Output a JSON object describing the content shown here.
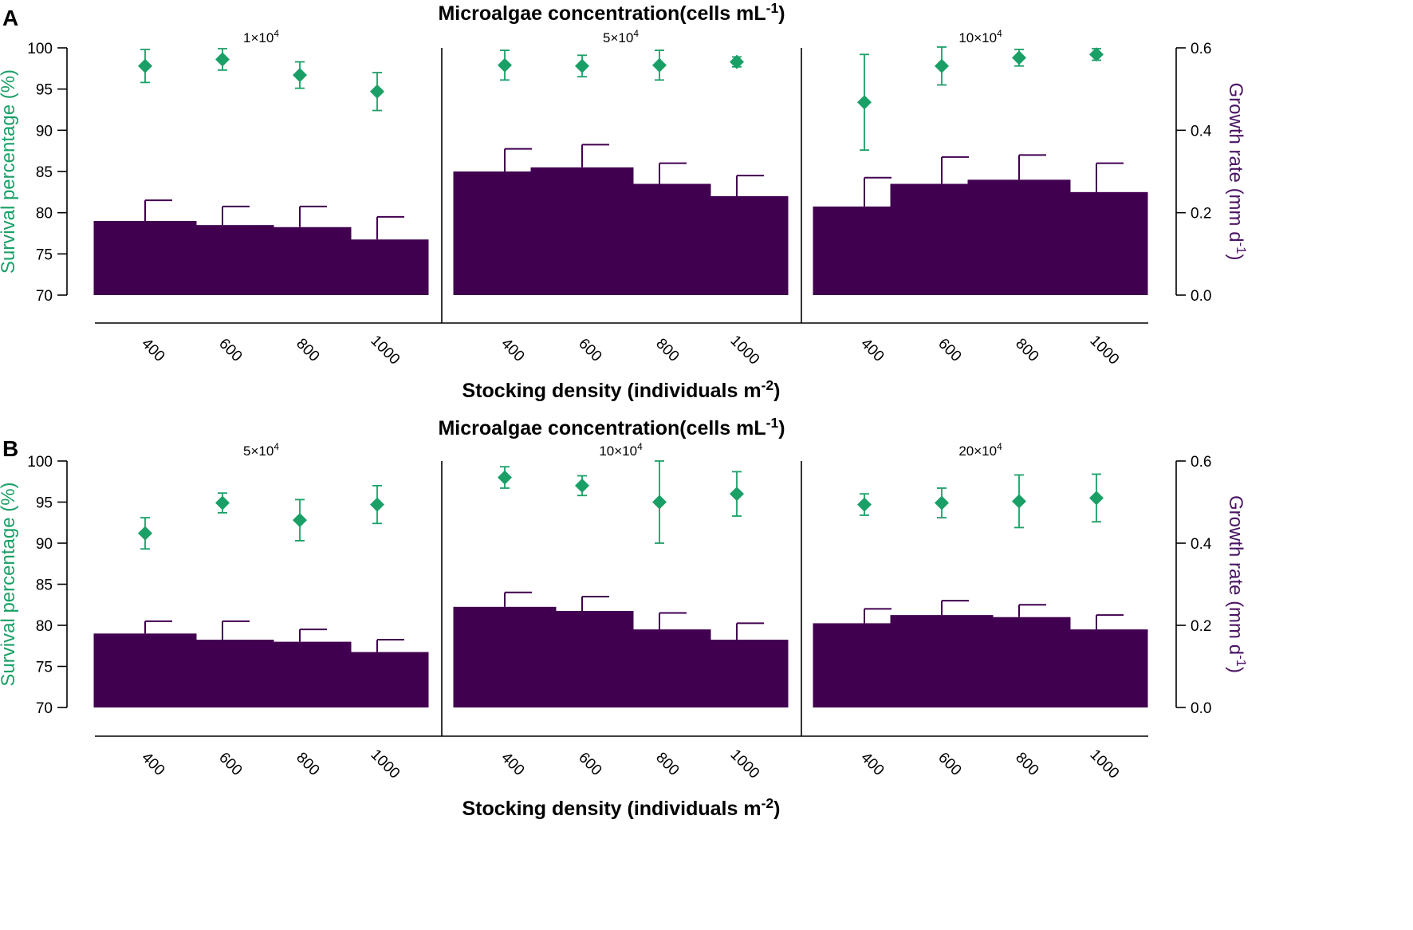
{
  "colors": {
    "bar": "#41004f",
    "survival": "#1aa067",
    "growth_axis": "#4b1464",
    "axis": "#000000"
  },
  "chart_data": [
    {
      "type": "bar",
      "panel": "A",
      "title": "Microalgae concentration(cells mL",
      "title_sup": "-1",
      "title_end": ")",
      "xlabel": "Stocking density (individuals m",
      "xlabel_sup": "-2",
      "xlabel_end": ")",
      "ylabel_left": "Survival percentage (%)",
      "ylabel_right_pre": "Growth rate (mm d",
      "ylabel_right_sup": "-1",
      "ylabel_right_end": ")",
      "left_ylim": [
        70,
        100
      ],
      "left_ticks": [
        "70",
        "75",
        "80",
        "85",
        "90",
        "95",
        "100"
      ],
      "right_ylim": [
        0,
        0.6
      ],
      "right_ticks": [
        "0.0",
        "0.2",
        "0.4",
        "0.6"
      ],
      "categories": [
        "400",
        "600",
        "800",
        "1000"
      ],
      "groups": [
        {
          "label": "1×10",
          "label_sup": "4",
          "growth": [
            0.18,
            0.17,
            0.165,
            0.135
          ],
          "growth_err": [
            0.05,
            0.045,
            0.05,
            0.055
          ],
          "survival": [
            97.8,
            98.6,
            96.7,
            94.7
          ],
          "survival_err": [
            2.0,
            1.3,
            1.6,
            2.3
          ]
        },
        {
          "label": "5×10",
          "label_sup": "4",
          "growth": [
            0.3,
            0.31,
            0.27,
            0.24
          ],
          "growth_err": [
            0.055,
            0.055,
            0.05,
            0.05
          ],
          "survival": [
            97.9,
            97.8,
            97.9,
            98.3
          ],
          "survival_err": [
            1.8,
            1.3,
            1.8,
            0.6
          ]
        },
        {
          "label": "10×10",
          "label_sup": "4",
          "growth": [
            0.215,
            0.27,
            0.28,
            0.25
          ],
          "growth_err": [
            0.07,
            0.065,
            0.06,
            0.07
          ],
          "survival": [
            93.4,
            97.8,
            98.8,
            99.2
          ],
          "survival_err": [
            5.8,
            2.3,
            1.0,
            0.7
          ]
        }
      ]
    },
    {
      "type": "bar",
      "panel": "B",
      "title": "Microalgae concentration(cells mL",
      "title_sup": "-1",
      "title_end": ")",
      "xlabel": "Stocking density (individuals m",
      "xlabel_sup": "-2",
      "xlabel_end": ")",
      "ylabel_left": "Survival percentage (%)",
      "ylabel_right_pre": "Growth rate (mm d",
      "ylabel_right_sup": "-1",
      "ylabel_right_end": ")",
      "left_ylim": [
        70,
        100
      ],
      "left_ticks": [
        "70",
        "75",
        "80",
        "85",
        "90",
        "95",
        "100"
      ],
      "right_ylim": [
        0,
        0.6
      ],
      "right_ticks": [
        "0.0",
        "0.2",
        "0.4",
        "0.6"
      ],
      "categories": [
        "400",
        "600",
        "800",
        "1000"
      ],
      "groups": [
        {
          "label": "5×10",
          "label_sup": "4",
          "growth": [
            0.18,
            0.165,
            0.16,
            0.135
          ],
          "growth_err": [
            0.03,
            0.045,
            0.03,
            0.03
          ],
          "survival": [
            91.2,
            94.9,
            92.8,
            94.7
          ],
          "survival_err": [
            1.9,
            1.2,
            2.5,
            2.3
          ]
        },
        {
          "label": "10×10",
          "label_sup": "4",
          "growth": [
            0.245,
            0.235,
            0.19,
            0.165
          ],
          "growth_err": [
            0.035,
            0.035,
            0.04,
            0.04
          ],
          "survival": [
            98.0,
            97.0,
            95.0,
            96.0
          ],
          "survival_err": [
            1.3,
            1.2,
            5.0,
            2.7
          ]
        },
        {
          "label": "20×10",
          "label_sup": "4",
          "growth": [
            0.205,
            0.225,
            0.22,
            0.19
          ],
          "growth_err": [
            0.035,
            0.035,
            0.03,
            0.035
          ],
          "survival": [
            94.7,
            94.9,
            95.1,
            95.5
          ],
          "survival_err": [
            1.3,
            1.8,
            3.2,
            2.9
          ]
        }
      ]
    }
  ]
}
